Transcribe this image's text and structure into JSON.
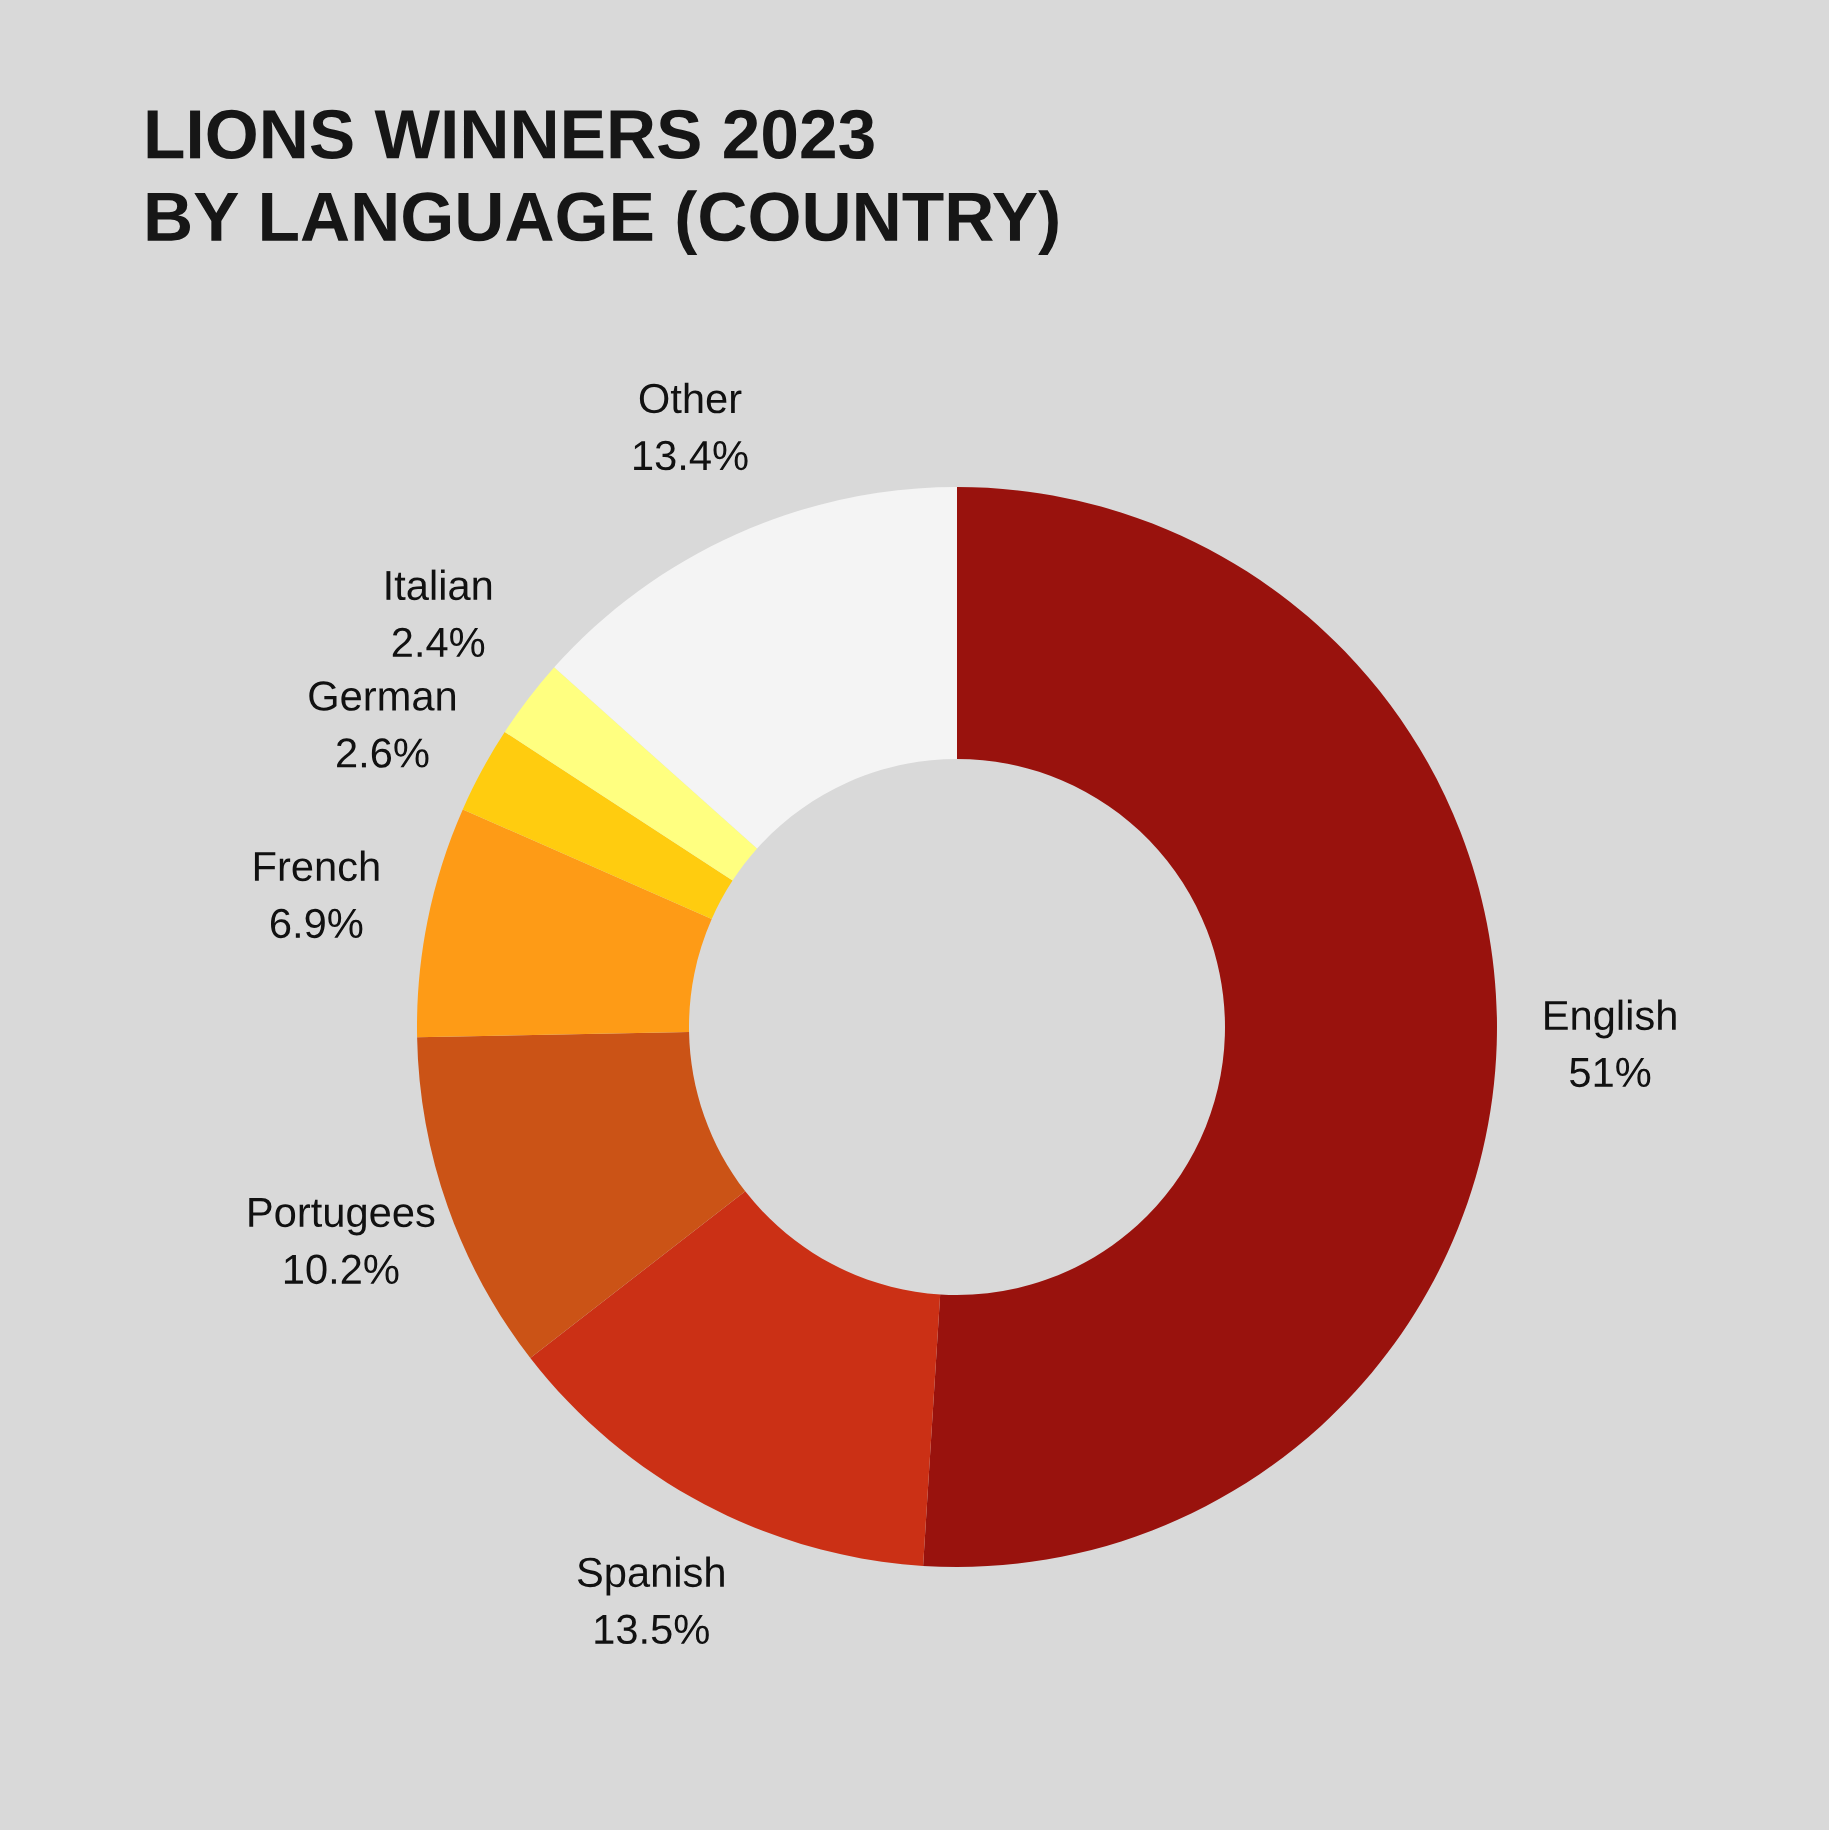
{
  "chart_data": {
    "type": "donut",
    "title": "LIONS WINNERS 2023\nBY LANGUAGE (COUNTRY)",
    "categories": [
      "English",
      "Spanish",
      "Portugees",
      "French",
      "German",
      "Italian",
      "Other"
    ],
    "values": [
      51,
      13.5,
      10.2,
      6.9,
      2.6,
      2.4,
      13.4
    ],
    "colors": [
      "#99120d",
      "#cb3015",
      "#cb5316",
      "#fe9b16",
      "#ffcc0f",
      "#ffff80",
      "#f4f4f4"
    ],
    "value_labels": [
      "51%",
      "13.5%",
      "10.2%",
      "6.9%",
      "2.6%",
      "2.4%",
      "13.4%"
    ]
  }
}
